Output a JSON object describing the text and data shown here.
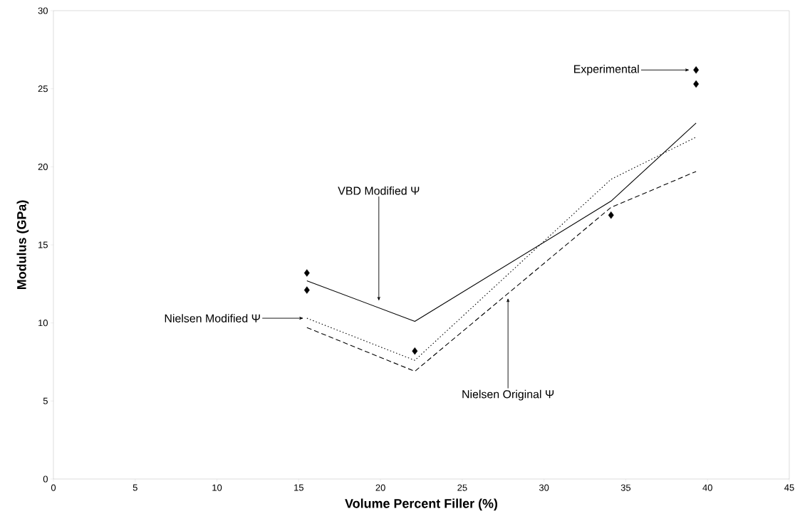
{
  "chart_data": {
    "type": "line",
    "xlabel": "Volume Percent Filler (%)",
    "ylabel": "Modulus (GPa)",
    "xlim": [
      0,
      45
    ],
    "ylim": [
      0,
      30
    ],
    "xticks": [
      0,
      5,
      10,
      15,
      20,
      25,
      30,
      35,
      40,
      45
    ],
    "yticks": [
      0,
      5,
      10,
      15,
      20,
      25,
      30
    ],
    "grid": false,
    "series": [
      {
        "type": "scatter",
        "marker": "diamond",
        "color": "#000000",
        "x": [
          15.5,
          15.5,
          22.1,
          34.1,
          39.3,
          39.3
        ],
        "values": [
          13.2,
          12.1,
          8.2,
          16.9,
          26.2,
          25.3
        ]
      },
      {
        "line_style": "solid",
        "marker": "none",
        "color": "#000000",
        "x": [
          15.5,
          22.1,
          34.1,
          39.3
        ],
        "values": [
          12.7,
          10.1,
          17.8,
          22.8
        ]
      },
      {
        "line_style": "dotted",
        "marker": "none",
        "color": "#000000",
        "x": [
          15.5,
          22.1,
          34.1,
          39.3
        ],
        "values": [
          10.3,
          7.6,
          19.2,
          21.9
        ]
      },
      {
        "line_style": "dashed",
        "marker": "none",
        "color": "#000000",
        "x": [
          15.5,
          22.1,
          34.1,
          39.3
        ],
        "values": [
          9.7,
          6.9,
          17.4,
          19.7
        ]
      }
    ],
    "annotations": [
      "VBD Modified Ψ",
      "Nielsen Modified Ψ",
      "Nielsen Original Ψ",
      "Experimental"
    ]
  }
}
